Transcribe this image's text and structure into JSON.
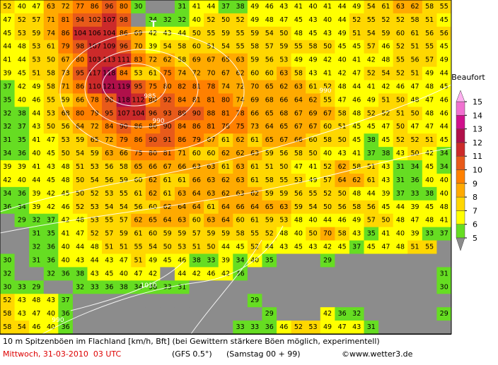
{
  "map": {
    "title": "10 m Spitzenböen im Flachland [km/h, Bft] (bei Gewittern stärkere Böen möglich, experimentell)",
    "date": "Mittwoch, 31-03-2010  03 UTC",
    "model": "(GFS 0.5°)",
    "run": "(Samstag 00 + 99)",
    "source": "©www.wetter3.de",
    "low_marker": "T",
    "isobar_labels": [
      "985",
      "990",
      "990",
      "1010",
      "990"
    ],
    "colorbar": {
      "title": "Beaufort",
      "levels": [
        5,
        6,
        7,
        8,
        9,
        10,
        11,
        12,
        13,
        14,
        15
      ],
      "colors": [
        "#66dd22",
        "#ffff00",
        "#ffd700",
        "#ffaa00",
        "#ff8000",
        "#e85a1a",
        "#cc2a2a",
        "#b0104a",
        "#d0108c",
        "#f070d0"
      ],
      "under_color": "#8c8c8c",
      "over_color": "#ffb0f0"
    },
    "grid": [
      [
        52,
        40,
        47,
        63,
        72,
        77,
        86,
        96,
        80,
        30,
        null,
        null,
        31,
        41,
        44,
        37,
        38,
        49,
        46,
        43,
        41,
        40,
        41,
        44,
        49,
        54,
        61,
        63,
        62,
        58,
        55
      ],
      [
        47,
        52,
        57,
        71,
        81,
        94,
        102,
        107,
        98,
        null,
        34,
        32,
        32,
        40,
        52,
        50,
        52,
        49,
        48,
        47,
        45,
        43,
        40,
        44,
        52,
        55,
        52,
        52,
        58,
        51,
        45
      ],
      [
        45,
        53,
        59,
        74,
        86,
        104,
        106,
        104,
        86,
        69,
        42,
        43,
        44,
        50,
        55,
        59,
        55,
        59,
        54,
        50,
        48,
        45,
        43,
        49,
        51,
        54,
        59,
        60,
        61,
        56,
        56
      ],
      [
        44,
        48,
        53,
        61,
        79,
        98,
        107,
        109,
        96,
        70,
        39,
        54,
        58,
        60,
        51,
        54,
        55,
        58,
        57,
        59,
        55,
        58,
        50,
        45,
        45,
        57,
        46,
        52,
        51,
        55,
        45
      ],
      [
        41,
        44,
        53,
        50,
        67,
        80,
        103,
        113,
        111,
        83,
        72,
        62,
        58,
        69,
        67,
        65,
        63,
        59,
        56,
        53,
        49,
        49,
        42,
        40,
        41,
        42,
        48,
        55,
        56,
        57,
        49
      ],
      [
        39,
        45,
        51,
        58,
        73,
        95,
        117,
        118,
        84,
        53,
        61,
        75,
        74,
        72,
        70,
        67,
        62,
        60,
        60,
        63,
        58,
        43,
        41,
        42,
        47,
        52,
        54,
        52,
        51,
        49,
        44
      ],
      [
        37,
        42,
        49,
        58,
        71,
        86,
        110,
        121,
        119,
        95,
        75,
        80,
        82,
        81,
        78,
        74,
        72,
        70,
        65,
        62,
        63,
        61,
        52,
        48,
        44,
        41,
        42,
        46,
        47,
        48,
        45
      ],
      [
        35,
        40,
        46,
        55,
        59,
        66,
        78,
        98,
        118,
        112,
        80,
        92,
        84,
        81,
        81,
        80,
        74,
        69,
        68,
        66,
        64,
        62,
        55,
        47,
        46,
        49,
        51,
        50,
        48,
        47,
        46
      ],
      [
        32,
        38,
        44,
        53,
        68,
        80,
        79,
        95,
        107,
        104,
        96,
        93,
        89,
        90,
        88,
        81,
        78,
        66,
        65,
        68,
        67,
        69,
        67,
        58,
        48,
        52,
        52,
        51,
        50,
        48,
        46
      ],
      [
        32,
        37,
        43,
        50,
        56,
        64,
        72,
        84,
        90,
        86,
        86,
        90,
        84,
        86,
        81,
        78,
        75,
        73,
        64,
        65,
        67,
        67,
        60,
        51,
        45,
        45,
        47,
        50,
        47,
        47,
        44
      ],
      [
        31,
        35,
        41,
        47,
        53,
        59,
        65,
        72,
        79,
        86,
        90,
        91,
        86,
        79,
        67,
        61,
        62,
        61,
        65,
        67,
        66,
        60,
        58,
        50,
        45,
        38,
        45,
        52,
        52,
        51,
        45
      ],
      [
        34,
        36,
        40,
        45,
        50,
        54,
        59,
        63,
        66,
        75,
        80,
        81,
        71,
        60,
        60,
        62,
        62,
        63,
        59,
        56,
        58,
        50,
        40,
        43,
        41,
        37,
        38,
        43,
        50,
        42,
        34
      ],
      [
        39,
        39,
        41,
        43,
        48,
        51,
        53,
        56,
        58,
        65,
        66,
        67,
        66,
        63,
        63,
        61,
        63,
        61,
        51,
        50,
        47,
        41,
        52,
        62,
        58,
        51,
        43,
        31,
        34,
        45,
        34
      ],
      [
        42,
        40,
        44,
        45,
        48,
        50,
        54,
        56,
        59,
        60,
        62,
        61,
        61,
        66,
        63,
        62,
        63,
        61,
        58,
        55,
        53,
        49,
        57,
        64,
        62,
        61,
        43,
        31,
        36,
        40,
        40
      ],
      [
        34,
        36,
        39,
        42,
        45,
        50,
        52,
        53,
        55,
        61,
        62,
        61,
        63,
        64,
        63,
        62,
        63,
        62,
        59,
        59,
        56,
        55,
        52,
        50,
        48,
        44,
        39,
        37,
        33,
        38,
        40
      ],
      [
        36,
        34,
        39,
        42,
        46,
        52,
        53,
        54,
        54,
        56,
        60,
        62,
        64,
        64,
        61,
        64,
        66,
        64,
        65,
        63,
        59,
        54,
        50,
        56,
        58,
        56,
        45,
        44,
        39,
        45,
        48
      ],
      [
        null,
        29,
        32,
        37,
        42,
        48,
        53,
        55,
        57,
        62,
        65,
        64,
        63,
        60,
        63,
        64,
        60,
        61,
        59,
        53,
        48,
        40,
        44,
        46,
        49,
        57,
        50,
        48,
        47,
        48,
        41
      ],
      [
        null,
        null,
        31,
        35,
        41,
        47,
        52,
        57,
        59,
        61,
        60,
        59,
        59,
        57,
        59,
        59,
        58,
        55,
        52,
        48,
        40,
        50,
        70,
        58,
        43,
        35,
        41,
        40,
        39,
        33,
        37
      ],
      [
        null,
        null,
        32,
        36,
        40,
        44,
        48,
        51,
        51,
        55,
        54,
        50,
        53,
        51,
        50,
        44,
        45,
        52,
        44,
        43,
        45,
        43,
        42,
        45,
        37,
        45,
        47,
        48,
        51,
        55,
        null
      ],
      [
        30,
        null,
        31,
        36,
        40,
        43,
        44,
        43,
        47,
        51,
        49,
        45,
        46,
        38,
        33,
        39,
        34,
        40,
        35,
        null,
        null,
        null,
        29,
        null,
        null,
        null,
        null,
        null,
        null,
        null,
        null
      ],
      [
        32,
        null,
        null,
        32,
        36,
        38,
        43,
        45,
        40,
        47,
        42,
        null,
        44,
        42,
        46,
        42,
        36,
        null,
        null,
        null,
        null,
        null,
        null,
        null,
        null,
        null,
        null,
        null,
        null,
        null,
        31
      ],
      [
        30,
        33,
        29,
        null,
        null,
        32,
        33,
        36,
        38,
        34,
        36,
        33,
        31,
        null,
        null,
        null,
        null,
        null,
        null,
        null,
        null,
        null,
        null,
        null,
        null,
        null,
        null,
        null,
        null,
        null,
        30
      ],
      [
        52,
        43,
        48,
        43,
        37,
        null,
        null,
        null,
        null,
        null,
        null,
        null,
        null,
        null,
        null,
        null,
        null,
        29,
        null,
        null,
        null,
        null,
        null,
        null,
        null,
        null,
        null,
        null,
        null,
        null,
        null
      ],
      [
        58,
        43,
        47,
        40,
        36,
        null,
        null,
        null,
        null,
        null,
        null,
        null,
        null,
        null,
        null,
        null,
        null,
        null,
        29,
        null,
        null,
        null,
        42,
        36,
        32,
        null,
        null,
        null,
        null,
        null,
        29
      ],
      [
        58,
        54,
        46,
        40,
        36,
        null,
        null,
        null,
        null,
        null,
        null,
        null,
        null,
        null,
        null,
        null,
        33,
        33,
        36,
        46,
        52,
        53,
        49,
        47,
        43,
        31,
        null,
        null,
        null,
        null,
        null
      ]
    ]
  }
}
